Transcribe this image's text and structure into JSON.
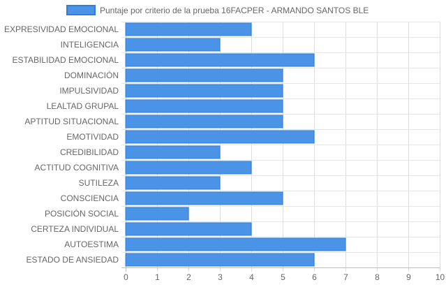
{
  "chart_data": {
    "type": "bar",
    "orientation": "horizontal",
    "categories": [
      "EXPRESIVIDAD EMOCIONAL",
      "INTELIGENCIA",
      "ESTABILIDAD EMOCIONAL",
      "DOMINACIÓN",
      "IMPULSIVIDAD",
      "LEALTAD GRUPAL",
      "APTITUD SITUACIONAL",
      "EMOTIVIDAD",
      "CREDIBILIDAD",
      "ACTITUD COGNITIVA",
      "SUTILEZA",
      "CONSCIENCIA",
      "POSICIÓN SOCIAL",
      "CERTEZA INDIVIDUAL",
      "AUTOESTIMA",
      "ESTADO DE ANSIEDAD"
    ],
    "series": [
      {
        "name": "Puntaje por criterio de la prueba 16FACPER - ARMANDO SANTOS BLE",
        "values": [
          4,
          3,
          6,
          5,
          5,
          5,
          5,
          6,
          3,
          4,
          3,
          5,
          2,
          4,
          7,
          6
        ],
        "color": "#4a93e6",
        "border_color": "#2f7fd9"
      }
    ],
    "xlim": [
      0,
      10
    ],
    "x_ticks": [
      "0",
      "1",
      "2",
      "3",
      "4",
      "5",
      "6",
      "7",
      "8",
      "9",
      "10"
    ],
    "grid": true,
    "legend_position": "top"
  }
}
